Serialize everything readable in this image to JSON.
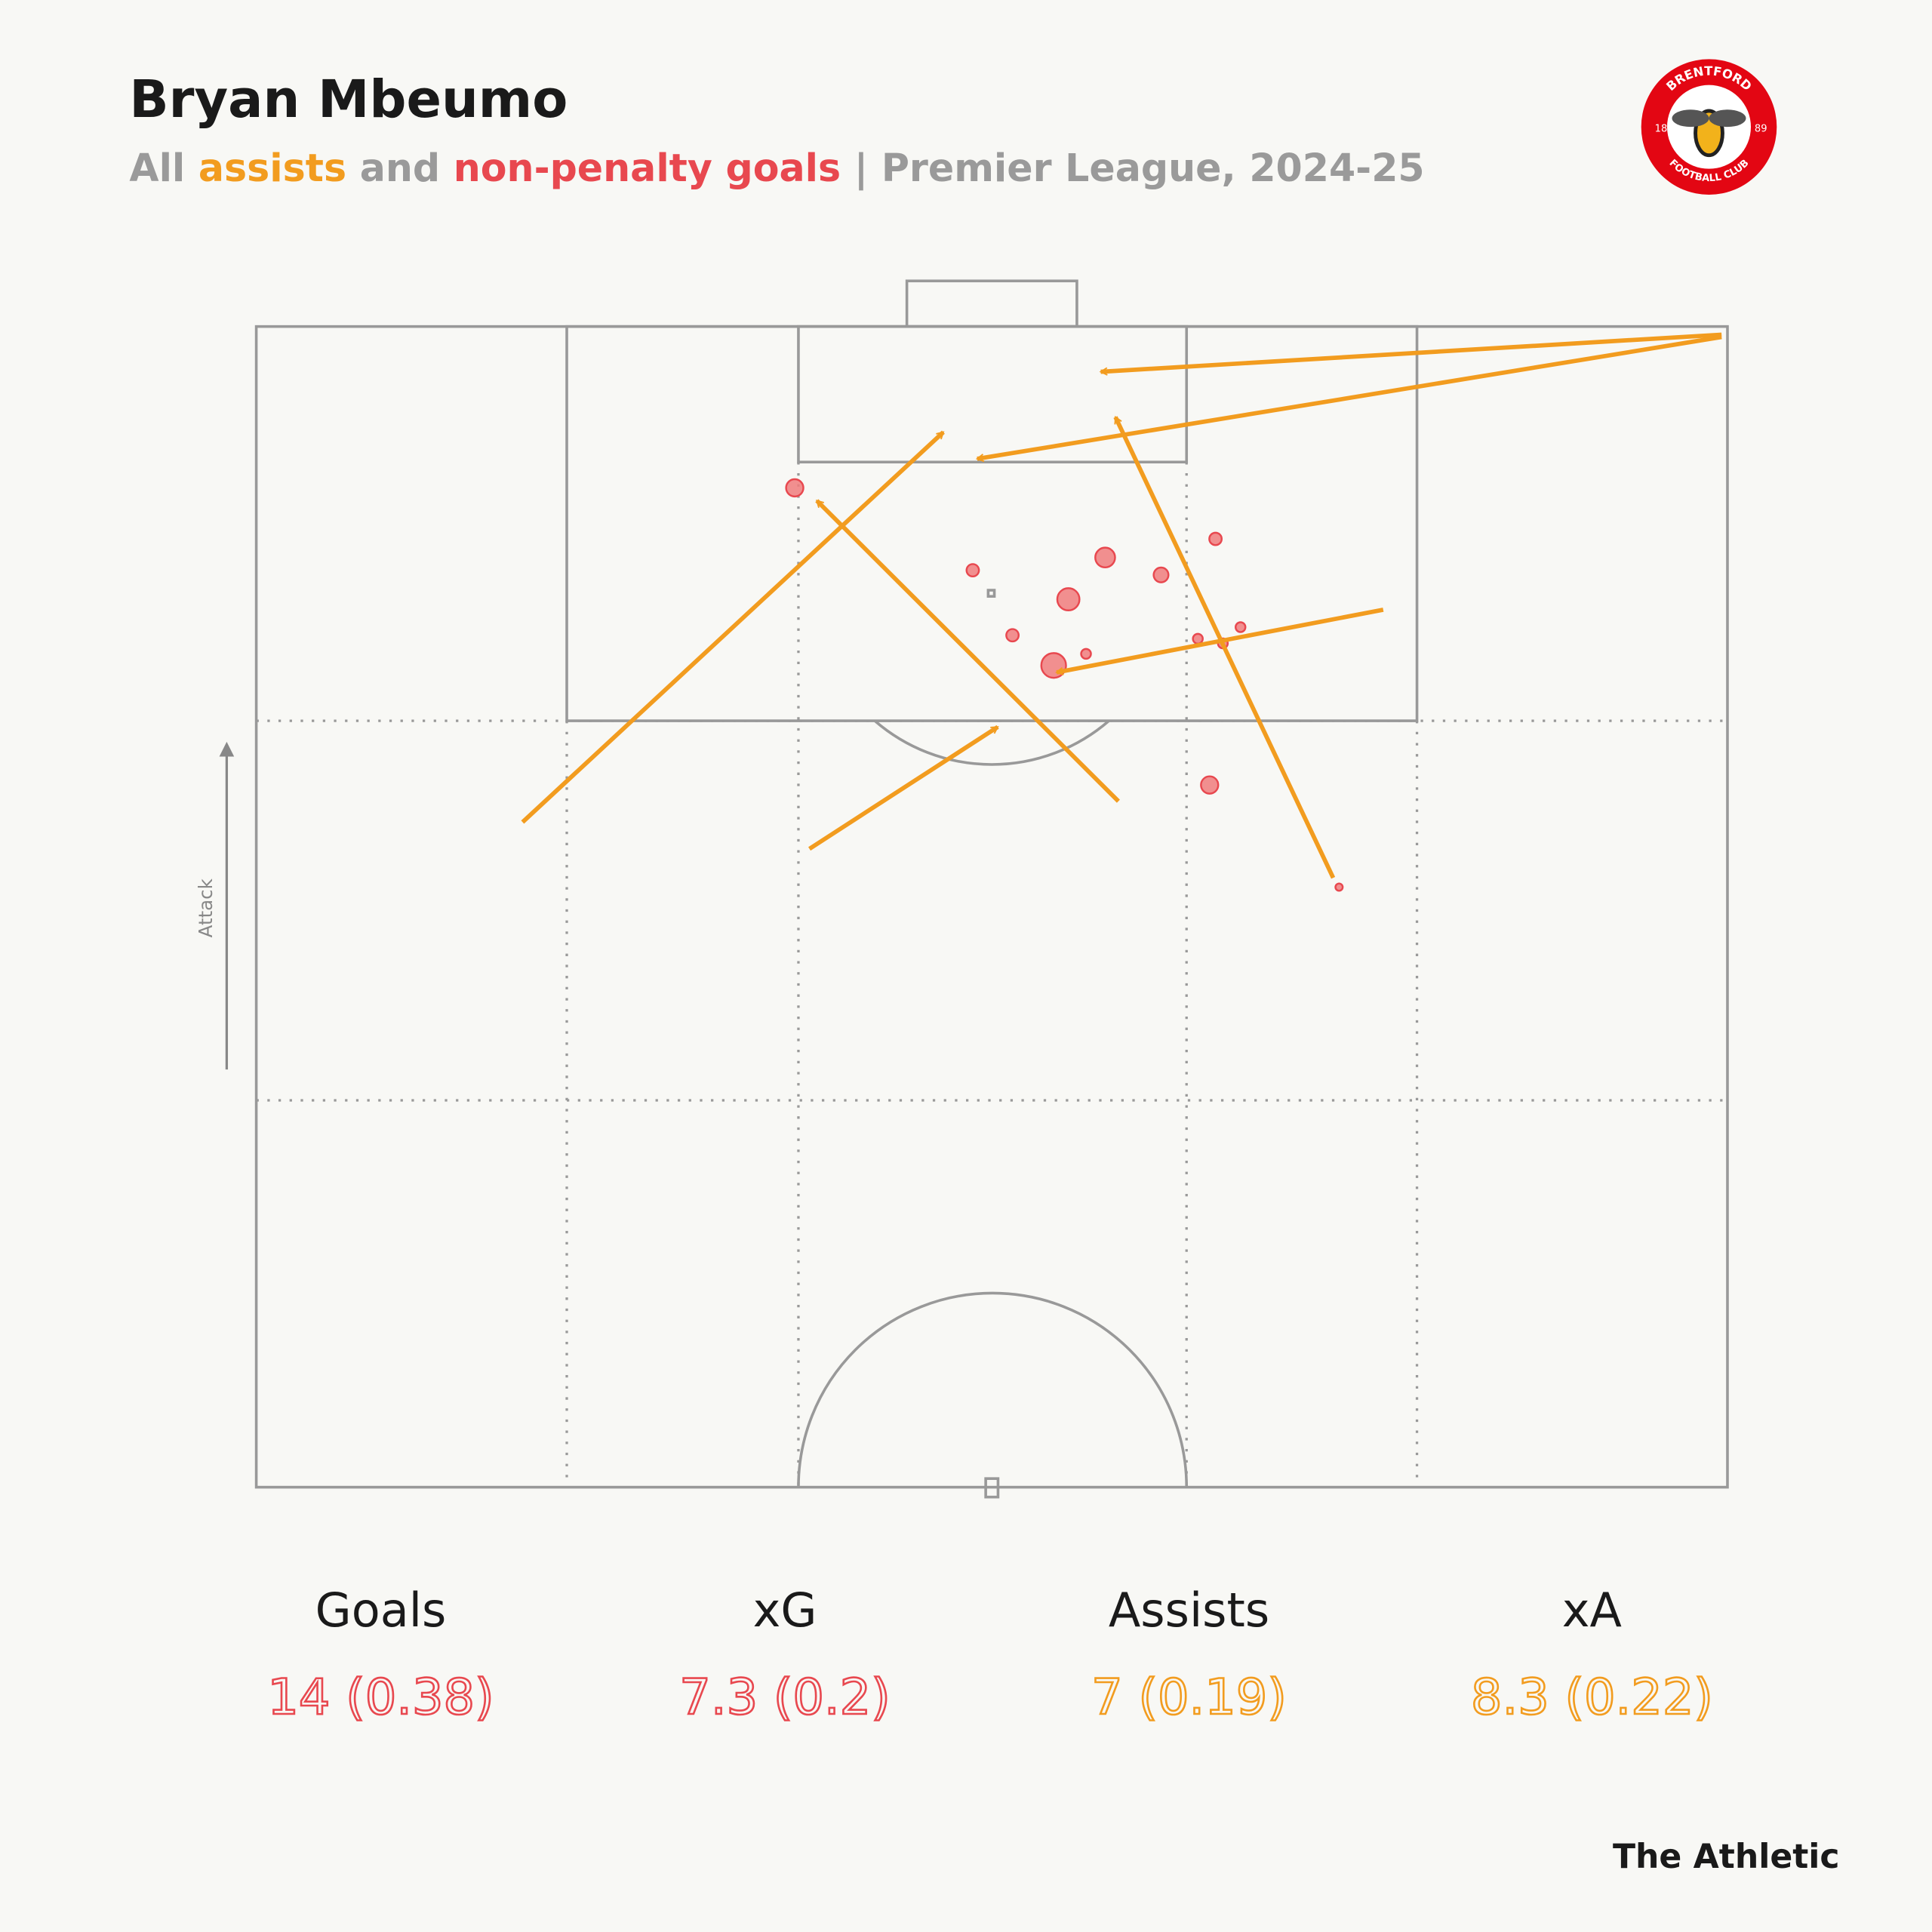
{
  "chart_data": {
    "type": "pitch",
    "title": "Bryan Mbeumo",
    "subtitle_parts": [
      {
        "text": "All ",
        "color": "#9a9a9a"
      },
      {
        "text": "assists",
        "color": "#f29c1f"
      },
      {
        "text": " and ",
        "color": "#9a9a9a"
      },
      {
        "text": "non-penalty goals",
        "color": "#e8484f"
      },
      {
        "text": " | Premier League, 2024-25",
        "color": "#9a9a9a"
      }
    ],
    "direction_label": "Attack",
    "xlim": [
      0,
      100
    ],
    "ylim": [
      0,
      100
    ],
    "shots": {
      "color": "#f07d7d",
      "x": [
        36.6,
        65.2,
        48.7,
        57.7,
        61.5,
        55.2,
        51.4,
        56.4,
        54.2,
        64.0,
        65.7,
        66.9,
        64.8,
        73.6
      ],
      "y": [
        86.1,
        81.7,
        79.0,
        80.1,
        78.6,
        76.5,
        73.4,
        71.8,
        70.8,
        73.1,
        72.7,
        74.1,
        60.5,
        51.7
      ],
      "xg": [
        0.68,
        0.35,
        0.35,
        0.89,
        0.5,
        1.12,
        0.35,
        0.22,
        1.39,
        0.22,
        0.22,
        0.22,
        0.68,
        0.12
      ]
    },
    "assists": {
      "color": "#f29c1f",
      "x": [
        99.6,
        99.6,
        18.1,
        37.6,
        58.6,
        73.2,
        76.6
      ],
      "y": [
        99.3,
        99.1,
        57.3,
        55.0,
        59.1,
        52.5,
        75.6
      ],
      "x_end": [
        57.4,
        49.0,
        46.7,
        50.4,
        38.1,
        58.4,
        54.4
      ],
      "y_end": [
        96.1,
        88.6,
        90.9,
        65.5,
        85.0,
        92.2,
        70.2
      ]
    },
    "stats": [
      {
        "label": "Goals",
        "value": "14 (0.38)",
        "color": "#e8484f"
      },
      {
        "label": "xG",
        "value": "7.3 (0.2)",
        "color": "#e8484f"
      },
      {
        "label": "Assists",
        "value": "7 (0.19)",
        "color": "#f29c1f"
      },
      {
        "label": "xA",
        "value": "8.3 (0.22)",
        "color": "#f29c1f"
      }
    ],
    "logo": {
      "top": "BRENTFORD",
      "bottom": "FOOTBALL CLUB",
      "left": "18",
      "right": "89"
    },
    "source": "The Athletic"
  }
}
